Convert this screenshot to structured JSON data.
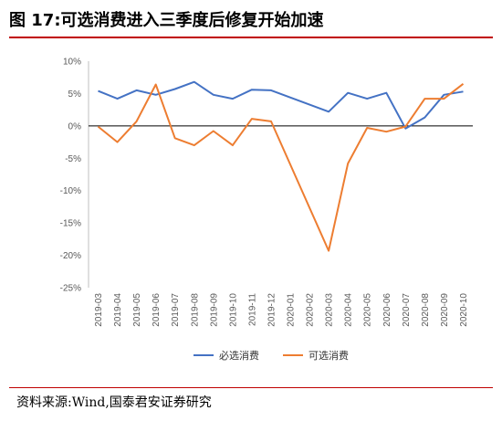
{
  "header": {
    "title": "图 17:可选消费进入三季度后修复开始加速"
  },
  "footer": {
    "source": "资料来源:Wind,国泰君安证券研究"
  },
  "colors": {
    "title_rule": "#c00000",
    "series_1": "#4472c4",
    "series_2": "#ed7d31",
    "axis": "#595959",
    "zero_line": "#000000"
  },
  "chart_data": {
    "type": "line",
    "categories": [
      "2019-03",
      "2019-04",
      "2019-05",
      "2019-06",
      "2019-07",
      "2019-08",
      "2019-09",
      "2019-10",
      "2019-11",
      "2019-12",
      "2020-01",
      "2020-02",
      "2020-03",
      "2020-04",
      "2020-05",
      "2020-06",
      "2020-07",
      "2020-08",
      "2020-09",
      "2020-10"
    ],
    "series": [
      {
        "name": "必选消费",
        "color": "#4472c4",
        "values": [
          5.4,
          4.2,
          5.5,
          4.8,
          5.7,
          6.8,
          4.8,
          4.2,
          5.6,
          5.5,
          null,
          null,
          2.2,
          5.1,
          4.2,
          5.1,
          -0.4,
          1.3,
          4.8,
          5.3
        ]
      },
      {
        "name": "可选消费",
        "color": "#ed7d31",
        "values": [
          -0.1,
          -2.5,
          0.7,
          6.4,
          -1.9,
          -3.0,
          -0.8,
          -3.0,
          1.1,
          0.7,
          null,
          null,
          -19.3,
          -5.8,
          -0.3,
          -0.9,
          -0.1,
          4.2,
          4.2,
          6.5
        ]
      }
    ],
    "y_ticks": [
      "10%",
      "5%",
      "0%",
      "-5%",
      "-10%",
      "-15%",
      "-20%",
      "-25%"
    ],
    "ylim": [
      -25,
      10
    ],
    "grid": false,
    "legend_position": "bottom-center"
  }
}
